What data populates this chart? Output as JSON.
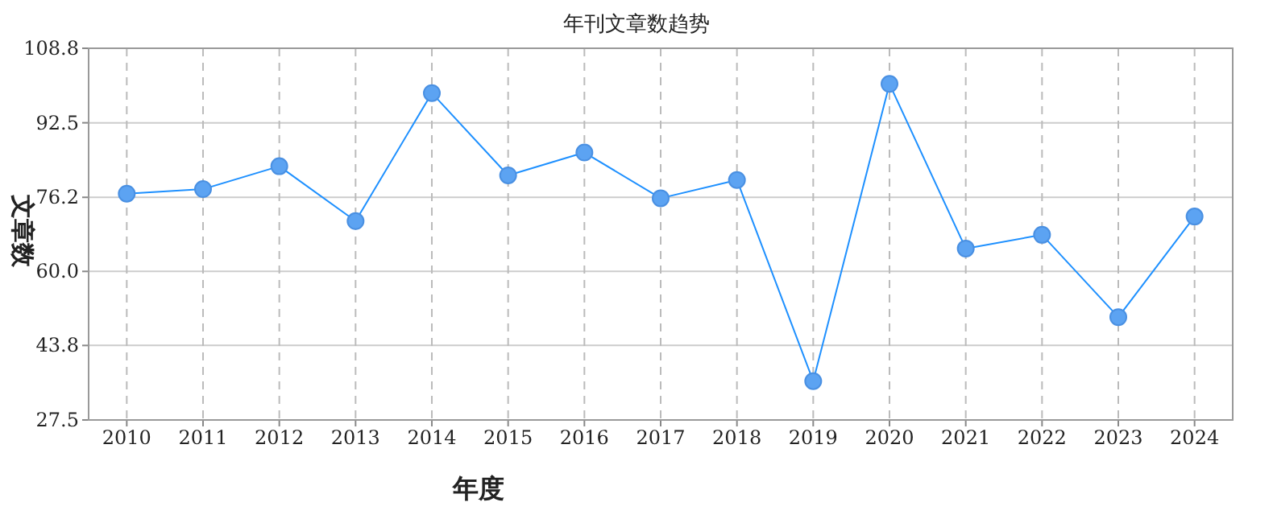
{
  "chart_data": {
    "type": "line",
    "title": "年刊文章数趋势",
    "xlabel": "年度",
    "ylabel": "文章数",
    "categories": [
      "2010",
      "2011",
      "2012",
      "2013",
      "2014",
      "2015",
      "2016",
      "2017",
      "2018",
      "2019",
      "2020",
      "2021",
      "2022",
      "2023",
      "2024"
    ],
    "series": [
      {
        "color": "#1e90ff",
        "values": [
          77,
          78,
          83,
          71,
          99,
          81,
          86,
          76,
          80,
          36,
          101,
          65,
          68,
          50,
          72
        ]
      }
    ],
    "ylim": [
      27.5,
      108.8
    ],
    "yticks": [
      27.5,
      43.8,
      {
        "value": 60,
        "label": "60.0"
      },
      76.2,
      92.5,
      108.8
    ],
    "grid": true,
    "marker": "circle",
    "line_style": "solid"
  }
}
